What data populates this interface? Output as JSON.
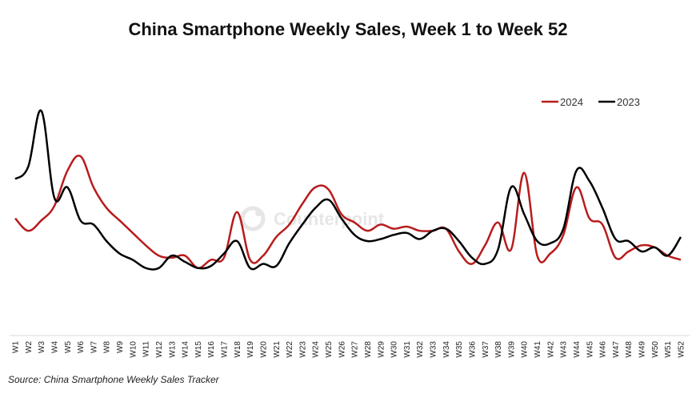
{
  "chart_data": {
    "type": "line",
    "title": "China Smartphone Weekly Sales, Week 1 to Week 52",
    "xlabel": "",
    "ylabel": "",
    "categories": [
      "W1",
      "W2",
      "W3",
      "W4",
      "W5",
      "W6",
      "W7",
      "W8",
      "W9",
      "W10",
      "W11",
      "W12",
      "W13",
      "W14",
      "W15",
      "W16",
      "W17",
      "W18",
      "W19",
      "W20",
      "W21",
      "W22",
      "W23",
      "W24",
      "W25",
      "W26",
      "W27",
      "W28",
      "W29",
      "W30",
      "W31",
      "W32",
      "W33",
      "W34",
      "W35",
      "W36",
      "W37",
      "W38",
      "W39",
      "W40",
      "W41",
      "W42",
      "W43",
      "W44",
      "W45",
      "W46",
      "W47",
      "W48",
      "W49",
      "W50",
      "W51",
      "W52"
    ],
    "series": [
      {
        "name": "2024",
        "color": "#b81c1c",
        "values": [
          57,
          51,
          56,
          63,
          80,
          87,
          72,
          62,
          56,
          50,
          44,
          39,
          38,
          39,
          33,
          37,
          38,
          60,
          37,
          39,
          48,
          54,
          64,
          72,
          71,
          59,
          55,
          51,
          54,
          52,
          53,
          51,
          51,
          52,
          41,
          35,
          44,
          55,
          42,
          79,
          39,
          40,
          49,
          72,
          57,
          54,
          38,
          41,
          44,
          43,
          39,
          37
        ]
      },
      {
        "name": "2023",
        "color": "#000000",
        "values": [
          76,
          82,
          109,
          67,
          72,
          56,
          54,
          46,
          40,
          37,
          33,
          33,
          39,
          36,
          33,
          34,
          40,
          46,
          33,
          35,
          34,
          45,
          54,
          62,
          66,
          57,
          49,
          46,
          47,
          49,
          50,
          47,
          51,
          52,
          46,
          38,
          35,
          42,
          72,
          59,
          46,
          45,
          52,
          80,
          75,
          62,
          47,
          46,
          41,
          43,
          39,
          48
        ]
      }
    ],
    "ylim": [
      0,
      118
    ],
    "grid": false,
    "legend_position": "top-right",
    "note": "Source: China Smartphone Weekly Sales Tracker",
    "watermark": "Counterpoint"
  }
}
